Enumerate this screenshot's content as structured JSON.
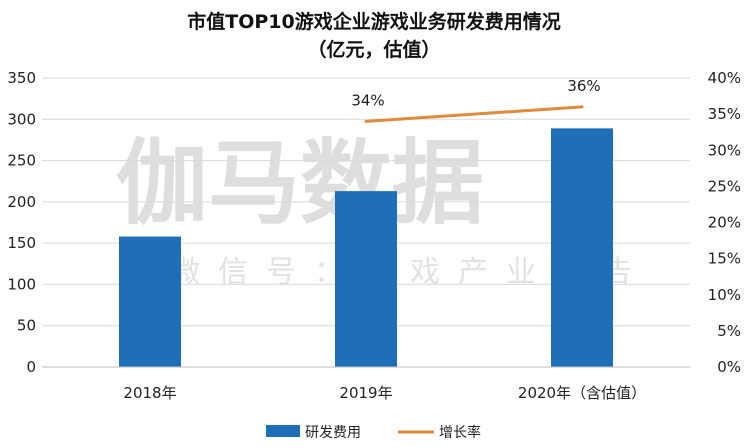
{
  "watermark": {
    "main": "伽马数据",
    "sub": "微信号：游戏产业报告"
  },
  "chart_data": {
    "type": "bar",
    "title": "市值TOP10游戏企业游戏业务研发费用情况",
    "subtitle": "（亿元，估值）",
    "categories": [
      "2018年",
      "2019年",
      "2020年（含估值）"
    ],
    "series": [
      {
        "name": "研发费用",
        "kind": "bar",
        "axis": "left",
        "values": [
          158,
          213,
          289
        ],
        "color": "#1f6fb8"
      },
      {
        "name": "增长率",
        "kind": "line",
        "axis": "right",
        "values": [
          null,
          0.34,
          0.36
        ],
        "labels": [
          "",
          "34%",
          "36%"
        ],
        "color": "#e08a3c"
      }
    ],
    "y_left": {
      "ylim": [
        0,
        350
      ],
      "ticks": [
        "0",
        "50",
        "100",
        "150",
        "200",
        "250",
        "300",
        "350"
      ]
    },
    "y_right": {
      "ylim": [
        0,
        0.4
      ],
      "ticks": [
        "0%",
        "5%",
        "10%",
        "15%",
        "20%",
        "25%",
        "30%",
        "35%",
        "40%"
      ]
    },
    "grid": true,
    "legend": "bottom"
  }
}
